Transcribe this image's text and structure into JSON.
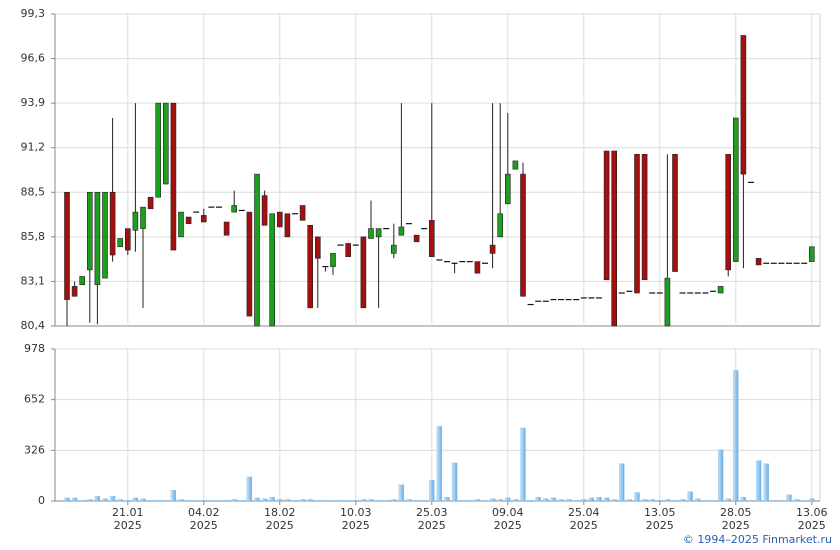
{
  "chart_data": [
    {
      "type": "candlestick",
      "ylim": [
        80.4,
        99.3
      ],
      "yticks": [
        {
          "value": 80.4,
          "label": "80,4"
        },
        {
          "value": 83.1,
          "label": "83,1"
        },
        {
          "value": 85.8,
          "label": "85,8"
        },
        {
          "value": 88.5,
          "label": "88,5"
        },
        {
          "value": 91.2,
          "label": "91,2"
        },
        {
          "value": 93.9,
          "label": "93,9"
        },
        {
          "value": 96.6,
          "label": "96,6"
        },
        {
          "value": 99.3,
          "label": "99,3"
        }
      ],
      "grid": true,
      "up_color": "#1e9e1e",
      "down_color": "#a31010",
      "open": [
        88.5,
        82.8,
        82.9,
        83.8,
        82.9,
        83.3,
        88.5,
        85.2,
        86.3,
        86.2,
        86.3,
        88.2,
        88.2,
        89.0,
        93.9,
        85.8,
        87.0,
        87.3,
        87.1,
        87.6,
        87.6,
        86.7,
        87.3,
        87.4,
        87.3,
        80.4,
        88.3,
        80.4,
        87.3,
        87.2,
        87.2,
        87.7,
        86.5,
        85.8,
        84.0,
        84.0,
        85.3,
        85.4,
        85.3,
        85.8,
        85.7,
        85.8,
        86.3,
        84.8,
        85.9,
        86.6,
        85.9,
        86.3,
        86.8,
        84.4,
        84.3,
        84.2,
        84.3,
        84.3,
        84.3,
        84.2,
        85.3,
        85.8,
        87.8,
        89.9,
        89.6,
        81.7,
        81.9,
        81.9,
        82.0,
        82.0,
        82.0,
        82.0,
        82.1,
        82.1,
        82.1,
        91.0,
        91.0,
        82.4,
        82.5,
        90.8,
        90.8,
        82.4,
        82.4,
        80.4,
        90.8,
        82.4,
        82.4,
        82.4,
        82.4,
        82.5,
        82.4,
        90.8,
        84.3,
        98.0,
        89.1,
        84.5,
        84.2,
        84.2,
        84.2,
        84.2,
        84.2,
        84.2,
        84.3
      ],
      "high": [
        88.5,
        83.1,
        83.4,
        88.5,
        88.5,
        88.5,
        93.0,
        85.7,
        86.3,
        93.9,
        87.6,
        88.2,
        93.9,
        93.9,
        93.9,
        87.3,
        87.0,
        87.3,
        87.5,
        87.6,
        87.6,
        86.7,
        88.6,
        87.4,
        87.3,
        89.6,
        88.6,
        87.2,
        87.3,
        87.2,
        87.2,
        87.7,
        86.5,
        85.8,
        84.0,
        84.8,
        85.3,
        85.4,
        85.3,
        85.8,
        88.0,
        86.3,
        86.3,
        86.6,
        93.9,
        86.6,
        85.9,
        86.3,
        93.9,
        84.4,
        84.3,
        84.2,
        84.3,
        84.3,
        84.3,
        84.2,
        93.9,
        93.9,
        93.3,
        90.4,
        90.3,
        81.7,
        81.9,
        81.9,
        82.0,
        82.0,
        82.0,
        82.0,
        82.1,
        82.1,
        82.1,
        91.0,
        91.0,
        82.4,
        82.5,
        90.8,
        90.8,
        82.4,
        82.4,
        90.8,
        90.8,
        82.4,
        82.4,
        82.4,
        82.4,
        82.5,
        82.8,
        90.8,
        93.0,
        98.0,
        89.1,
        84.5,
        84.2,
        84.2,
        84.2,
        84.2,
        84.2,
        84.2,
        85.2
      ],
      "low": [
        80.4,
        82.2,
        82.9,
        80.6,
        80.5,
        83.3,
        84.3,
        85.2,
        84.7,
        84.9,
        81.5,
        87.5,
        88.2,
        89.0,
        85.0,
        85.8,
        86.6,
        87.3,
        86.7,
        87.6,
        87.6,
        85.9,
        87.3,
        87.4,
        81.0,
        80.4,
        86.5,
        80.4,
        86.4,
        85.8,
        87.2,
        86.8,
        81.5,
        81.5,
        83.7,
        83.5,
        85.3,
        84.6,
        85.3,
        81.5,
        85.7,
        81.5,
        86.3,
        84.5,
        85.9,
        86.6,
        85.5,
        86.3,
        84.6,
        84.4,
        84.3,
        83.6,
        84.3,
        84.3,
        83.6,
        84.2,
        83.9,
        85.8,
        87.8,
        89.9,
        82.2,
        81.7,
        81.9,
        81.9,
        82.0,
        82.0,
        82.0,
        82.0,
        82.1,
        82.1,
        82.1,
        83.2,
        80.4,
        82.4,
        82.5,
        82.4,
        83.2,
        82.4,
        82.4,
        80.4,
        83.7,
        82.4,
        82.4,
        82.4,
        82.4,
        82.5,
        82.4,
        83.4,
        84.3,
        83.9,
        89.1,
        84.1,
        84.2,
        84.2,
        84.2,
        84.2,
        84.2,
        84.2,
        84.3
      ],
      "close": [
        82.0,
        82.2,
        83.4,
        88.5,
        88.5,
        88.5,
        84.7,
        85.7,
        85.0,
        87.3,
        87.6,
        87.5,
        93.9,
        93.9,
        85.0,
        87.3,
        86.6,
        87.3,
        86.7,
        87.6,
        87.6,
        85.9,
        87.7,
        87.4,
        81.0,
        89.6,
        86.5,
        87.2,
        86.4,
        85.8,
        87.2,
        86.8,
        81.5,
        84.5,
        84.0,
        84.8,
        85.3,
        84.6,
        85.3,
        81.5,
        86.3,
        86.3,
        86.3,
        85.3,
        86.4,
        86.6,
        85.5,
        86.3,
        84.6,
        84.4,
        84.3,
        84.2,
        84.3,
        84.3,
        83.6,
        84.2,
        84.8,
        87.2,
        89.6,
        90.4,
        82.2,
        81.7,
        81.9,
        81.9,
        82.0,
        82.0,
        82.0,
        82.0,
        82.1,
        82.1,
        82.1,
        83.2,
        80.4,
        82.4,
        82.5,
        82.4,
        83.2,
        82.4,
        82.4,
        83.3,
        83.7,
        82.4,
        82.4,
        82.4,
        82.4,
        82.5,
        82.8,
        83.8,
        93.0,
        89.6,
        89.1,
        84.1,
        84.2,
        84.2,
        84.2,
        84.2,
        84.2,
        84.2,
        85.2
      ]
    },
    {
      "type": "bar",
      "ylim": [
        0,
        978
      ],
      "yticks": [
        0,
        326,
        652,
        978
      ],
      "grid": true,
      "color": "#7db9e8",
      "categories": [
        null,
        null,
        null,
        null,
        null,
        null,
        null,
        null,
        "21.01 2025",
        null,
        null,
        null,
        null,
        null,
        null,
        null,
        null,
        null,
        "04.02 2025",
        null,
        null,
        null,
        null,
        null,
        null,
        null,
        null,
        null,
        "18.02 2025",
        null,
        null,
        null,
        null,
        null,
        null,
        null,
        null,
        null,
        "10.03 2025",
        null,
        null,
        null,
        null,
        null,
        null,
        null,
        null,
        null,
        "25.03 2025",
        null,
        null,
        null,
        null,
        null,
        null,
        null,
        null,
        null,
        "09.04 2025",
        null,
        null,
        null,
        null,
        null,
        null,
        null,
        null,
        null,
        "25.04 2025",
        null,
        null,
        null,
        null,
        null,
        null,
        null,
        null,
        null,
        "13.05 2025",
        null,
        null,
        null,
        null,
        null,
        null,
        null,
        null,
        null,
        "28.05 2025",
        null,
        null,
        null,
        null,
        null,
        null,
        null,
        null,
        null,
        "13.06 2025"
      ],
      "values": [
        20,
        20,
        5,
        10,
        30,
        15,
        30,
        10,
        5,
        20,
        15,
        5,
        5,
        5,
        70,
        10,
        5,
        5,
        5,
        5,
        5,
        5,
        10,
        5,
        155,
        20,
        15,
        25,
        10,
        10,
        5,
        10,
        10,
        5,
        5,
        5,
        5,
        5,
        5,
        10,
        10,
        5,
        5,
        10,
        105,
        10,
        5,
        5,
        135,
        480,
        25,
        245,
        5,
        5,
        10,
        5,
        15,
        10,
        20,
        10,
        470,
        5,
        25,
        15,
        20,
        10,
        10,
        5,
        10,
        20,
        25,
        20,
        10,
        240,
        10,
        55,
        10,
        10,
        5,
        10,
        5,
        10,
        60,
        15,
        5,
        5,
        330,
        15,
        840,
        25,
        5,
        260,
        240,
        5,
        5,
        40,
        10,
        5,
        15
      ]
    }
  ],
  "footer": "© 1994–2025 Finmarket.ru"
}
